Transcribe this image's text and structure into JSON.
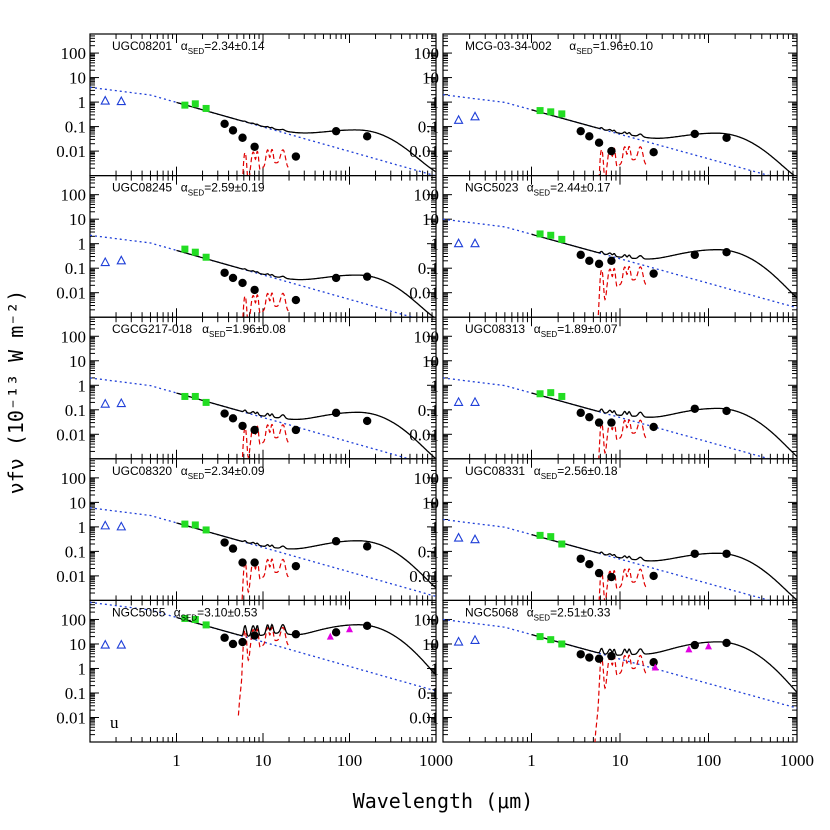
{
  "chart_data": {
    "type": "scatter",
    "xlabel": "Wavelength (μm)",
    "ylabel": "νfν (10⁻¹³ W m⁻²)",
    "x_scale": "log",
    "y_scale": "log",
    "xlim": [
      0.1,
      1000
    ],
    "ylim": [
      0.001,
      500
    ],
    "x_ticklabels": [
      "1",
      "10",
      "100",
      "1000"
    ],
    "y_ticklabels": [
      "100",
      "10",
      "1",
      "0.1",
      "0.01"
    ],
    "corner_annotation": "u",
    "colors": {
      "model": "#000000",
      "stellar": "#1f3fd8",
      "pah": "#e00000",
      "nir": "#22dd22",
      "uv": "#1f3fd8",
      "fir_triangle": "#e000e0",
      "points": "#000000"
    },
    "panels": [
      {
        "name": "UGC08201",
        "alpha": "2.34±0.14",
        "stellar_norm": 4,
        "ir_peak": 0.065,
        "mir_floor": 0.006,
        "nir": [
          [
            1.25,
            0.75
          ],
          [
            1.65,
            0.85
          ],
          [
            2.2,
            0.55
          ]
        ],
        "points": [
          [
            3.6,
            0.13
          ],
          [
            4.5,
            0.07
          ],
          [
            5.8,
            0.035
          ],
          [
            8,
            0.015
          ],
          [
            24,
            0.006
          ],
          [
            70,
            0.065
          ],
          [
            160,
            0.04
          ]
        ],
        "uv": [
          [
            0.15,
            1.1
          ],
          [
            0.23,
            1.05
          ]
        ],
        "fir": []
      },
      {
        "name": "MCG-03-34-002",
        "alpha": "1.96±0.10",
        "stellar_norm": 2,
        "ir_peak": 0.05,
        "mir_floor": 0.008,
        "nir": [
          [
            1.25,
            0.45
          ],
          [
            1.65,
            0.4
          ],
          [
            2.2,
            0.33
          ]
        ],
        "points": [
          [
            3.6,
            0.065
          ],
          [
            4.5,
            0.04
          ],
          [
            5.8,
            0.022
          ],
          [
            8,
            0.01
          ],
          [
            24,
            0.009
          ],
          [
            70,
            0.05
          ],
          [
            160,
            0.035
          ]
        ],
        "uv": [
          [
            0.15,
            0.18
          ],
          [
            0.23,
            0.25
          ]
        ],
        "fir": []
      },
      {
        "name": "UGC08245",
        "alpha": "2.59±0.19",
        "stellar_norm": 2.2,
        "ir_peak": 0.048,
        "mir_floor": 0.005,
        "nir": [
          [
            1.25,
            0.6
          ],
          [
            1.65,
            0.45
          ],
          [
            2.2,
            0.28
          ]
        ],
        "points": [
          [
            3.6,
            0.065
          ],
          [
            4.5,
            0.04
          ],
          [
            5.8,
            0.025
          ],
          [
            8,
            0.013
          ],
          [
            24,
            0.005
          ],
          [
            70,
            0.04
          ],
          [
            160,
            0.045
          ]
        ],
        "uv": [
          [
            0.15,
            0.17
          ],
          [
            0.23,
            0.2
          ]
        ],
        "fir": []
      },
      {
        "name": "NGC5023",
        "alpha": "2.44±0.17",
        "stellar_norm": 10,
        "ir_peak": 0.55,
        "mir_floor": 0.06,
        "nir": [
          [
            1.25,
            2.5
          ],
          [
            1.65,
            2.2
          ],
          [
            2.2,
            1.5
          ]
        ],
        "points": [
          [
            3.6,
            0.35
          ],
          [
            4.5,
            0.2
          ],
          [
            5.8,
            0.15
          ],
          [
            8,
            0.2
          ],
          [
            24,
            0.06
          ],
          [
            70,
            0.35
          ],
          [
            160,
            0.45
          ]
        ],
        "uv": [
          [
            0.15,
            1.0
          ],
          [
            0.23,
            1.0
          ]
        ],
        "fir": []
      },
      {
        "name": "CGCG217-018",
        "alpha": "1.96±0.08",
        "stellar_norm": 2,
        "ir_peak": 0.075,
        "mir_floor": 0.013,
        "nir": [
          [
            1.25,
            0.35
          ],
          [
            1.65,
            0.35
          ],
          [
            2.2,
            0.2
          ]
        ],
        "points": [
          [
            3.6,
            0.07
          ],
          [
            4.5,
            0.045
          ],
          [
            5.8,
            0.022
          ],
          [
            8,
            0.015
          ],
          [
            24,
            0.015
          ],
          [
            70,
            0.075
          ],
          [
            160,
            0.035
          ]
        ],
        "uv": [
          [
            0.15,
            0.17
          ],
          [
            0.23,
            0.18
          ]
        ],
        "fir": []
      },
      {
        "name": "UGC08313",
        "alpha": "1.89±0.07",
        "stellar_norm": 2,
        "ir_peak": 0.11,
        "mir_floor": 0.02,
        "nir": [
          [
            1.25,
            0.45
          ],
          [
            1.65,
            0.5
          ],
          [
            2.2,
            0.35
          ]
        ],
        "points": [
          [
            3.6,
            0.075
          ],
          [
            4.5,
            0.05
          ],
          [
            5.8,
            0.03
          ],
          [
            8,
            0.03
          ],
          [
            24,
            0.02
          ],
          [
            70,
            0.11
          ],
          [
            160,
            0.09
          ]
        ],
        "uv": [
          [
            0.15,
            0.2
          ],
          [
            0.23,
            0.2
          ]
        ],
        "fir": []
      },
      {
        "name": "UGC08320",
        "alpha": "2.34±0.09",
        "stellar_norm": 6,
        "ir_peak": 0.26,
        "mir_floor": 0.025,
        "nir": [
          [
            1.25,
            1.3
          ],
          [
            1.65,
            1.2
          ],
          [
            2.2,
            0.75
          ]
        ],
        "points": [
          [
            3.6,
            0.23
          ],
          [
            4.5,
            0.13
          ],
          [
            5.8,
            0.035
          ],
          [
            8,
            0.035
          ],
          [
            24,
            0.025
          ],
          [
            70,
            0.26
          ],
          [
            160,
            0.16
          ]
        ],
        "uv": [
          [
            0.15,
            1.1
          ],
          [
            0.23,
            1.0
          ]
        ],
        "fir": []
      },
      {
        "name": "UGC08331",
        "alpha": "2.56±0.18",
        "stellar_norm": 2,
        "ir_peak": 0.08,
        "mir_floor": 0.01,
        "nir": [
          [
            1.25,
            0.45
          ],
          [
            1.65,
            0.4
          ],
          [
            2.2,
            0.2
          ]
        ],
        "points": [
          [
            3.6,
            0.05
          ],
          [
            4.5,
            0.03
          ],
          [
            5.8,
            0.013
          ],
          [
            8,
            0.009
          ],
          [
            24,
            0.01
          ],
          [
            70,
            0.08
          ],
          [
            160,
            0.08
          ]
        ],
        "uv": [
          [
            0.15,
            0.35
          ],
          [
            0.23,
            0.3
          ]
        ],
        "fir": []
      },
      {
        "name": "NGC5055",
        "alpha": "3.10±0.53",
        "stellar_norm": 500,
        "ir_peak": 60,
        "mir_floor": 25,
        "nir": [
          [
            1.25,
            110
          ],
          [
            1.65,
            100
          ],
          [
            2.2,
            60
          ]
        ],
        "points": [
          [
            3.6,
            18
          ],
          [
            4.5,
            10
          ],
          [
            5.8,
            12
          ],
          [
            8,
            22
          ],
          [
            24,
            25
          ],
          [
            70,
            30
          ],
          [
            160,
            55
          ]
        ],
        "uv": [
          [
            0.15,
            9
          ],
          [
            0.23,
            9
          ]
        ],
        "fir": [
          [
            60,
            20
          ],
          [
            100,
            40
          ]
        ]
      },
      {
        "name": "NGC5068",
        "alpha": "2.51±0.33",
        "stellar_norm": 100,
        "ir_peak": 12,
        "mir_floor": 1.8,
        "nir": [
          [
            1.25,
            20
          ],
          [
            1.65,
            15
          ],
          [
            2.2,
            10
          ]
        ],
        "points": [
          [
            3.6,
            3.8
          ],
          [
            4.5,
            2.8
          ],
          [
            5.8,
            2.5
          ],
          [
            8,
            3.2
          ],
          [
            24,
            1.8
          ],
          [
            70,
            9
          ],
          [
            160,
            11
          ]
        ],
        "uv": [
          [
            0.15,
            12
          ],
          [
            0.23,
            14
          ]
        ],
        "fir": [
          [
            25,
            1.1
          ],
          [
            60,
            6
          ],
          [
            100,
            8
          ]
        ]
      }
    ]
  }
}
